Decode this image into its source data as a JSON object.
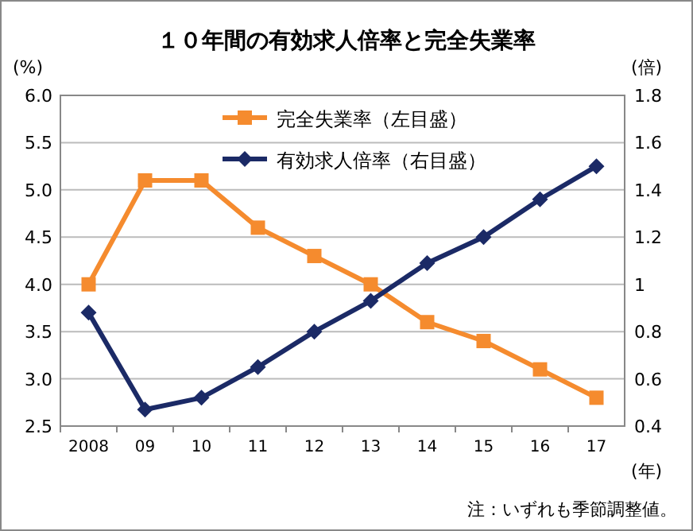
{
  "chart_data": {
    "type": "line",
    "title": "１０年間の有効求人倍率と完全失業率",
    "ylabel": "(%)",
    "y2label": "(倍)",
    "xlabel": "(年)",
    "categories": [
      "2008",
      "09",
      "10",
      "11",
      "12",
      "13",
      "14",
      "15",
      "16",
      "17"
    ],
    "series": [
      {
        "name": "完全失業率（左目盛）",
        "color": "#f58b2e",
        "marker": "square",
        "values": [
          4.0,
          5.1,
          5.1,
          4.6,
          4.3,
          4.0,
          3.6,
          3.4,
          3.1,
          2.8
        ]
      },
      {
        "name": "有効求人倍率（右目盛）",
        "color": "#1b2a66",
        "marker": "diamond",
        "axis": "y2",
        "values": [
          0.88,
          0.47,
          0.52,
          0.65,
          0.8,
          0.93,
          1.09,
          1.2,
          1.36,
          1.5
        ]
      }
    ],
    "ylim": [
      2.5,
      6.0
    ],
    "yticks": [
      {
        "value": 2.5,
        "label": "2.5"
      },
      {
        "value": 3,
        "label": "3.0"
      },
      {
        "value": 3.5,
        "label": "3.5"
      },
      {
        "value": 4,
        "label": "4.0"
      },
      {
        "value": 4.5,
        "label": "4.5"
      },
      {
        "value": 5,
        "label": "5.0"
      },
      {
        "value": 5.5,
        "label": "5.5"
      },
      {
        "value": 6,
        "label": "6.0"
      }
    ],
    "y2lim": [
      0.4,
      1.8
    ],
    "y2ticks": [
      0.4,
      0.6,
      0.8,
      1,
      1.2,
      1.4,
      1.6,
      1.8
    ],
    "grid": "y",
    "legend": "top",
    "line_style": "solid",
    "annotations": [
      "注：いずれも季節調整値。"
    ]
  }
}
